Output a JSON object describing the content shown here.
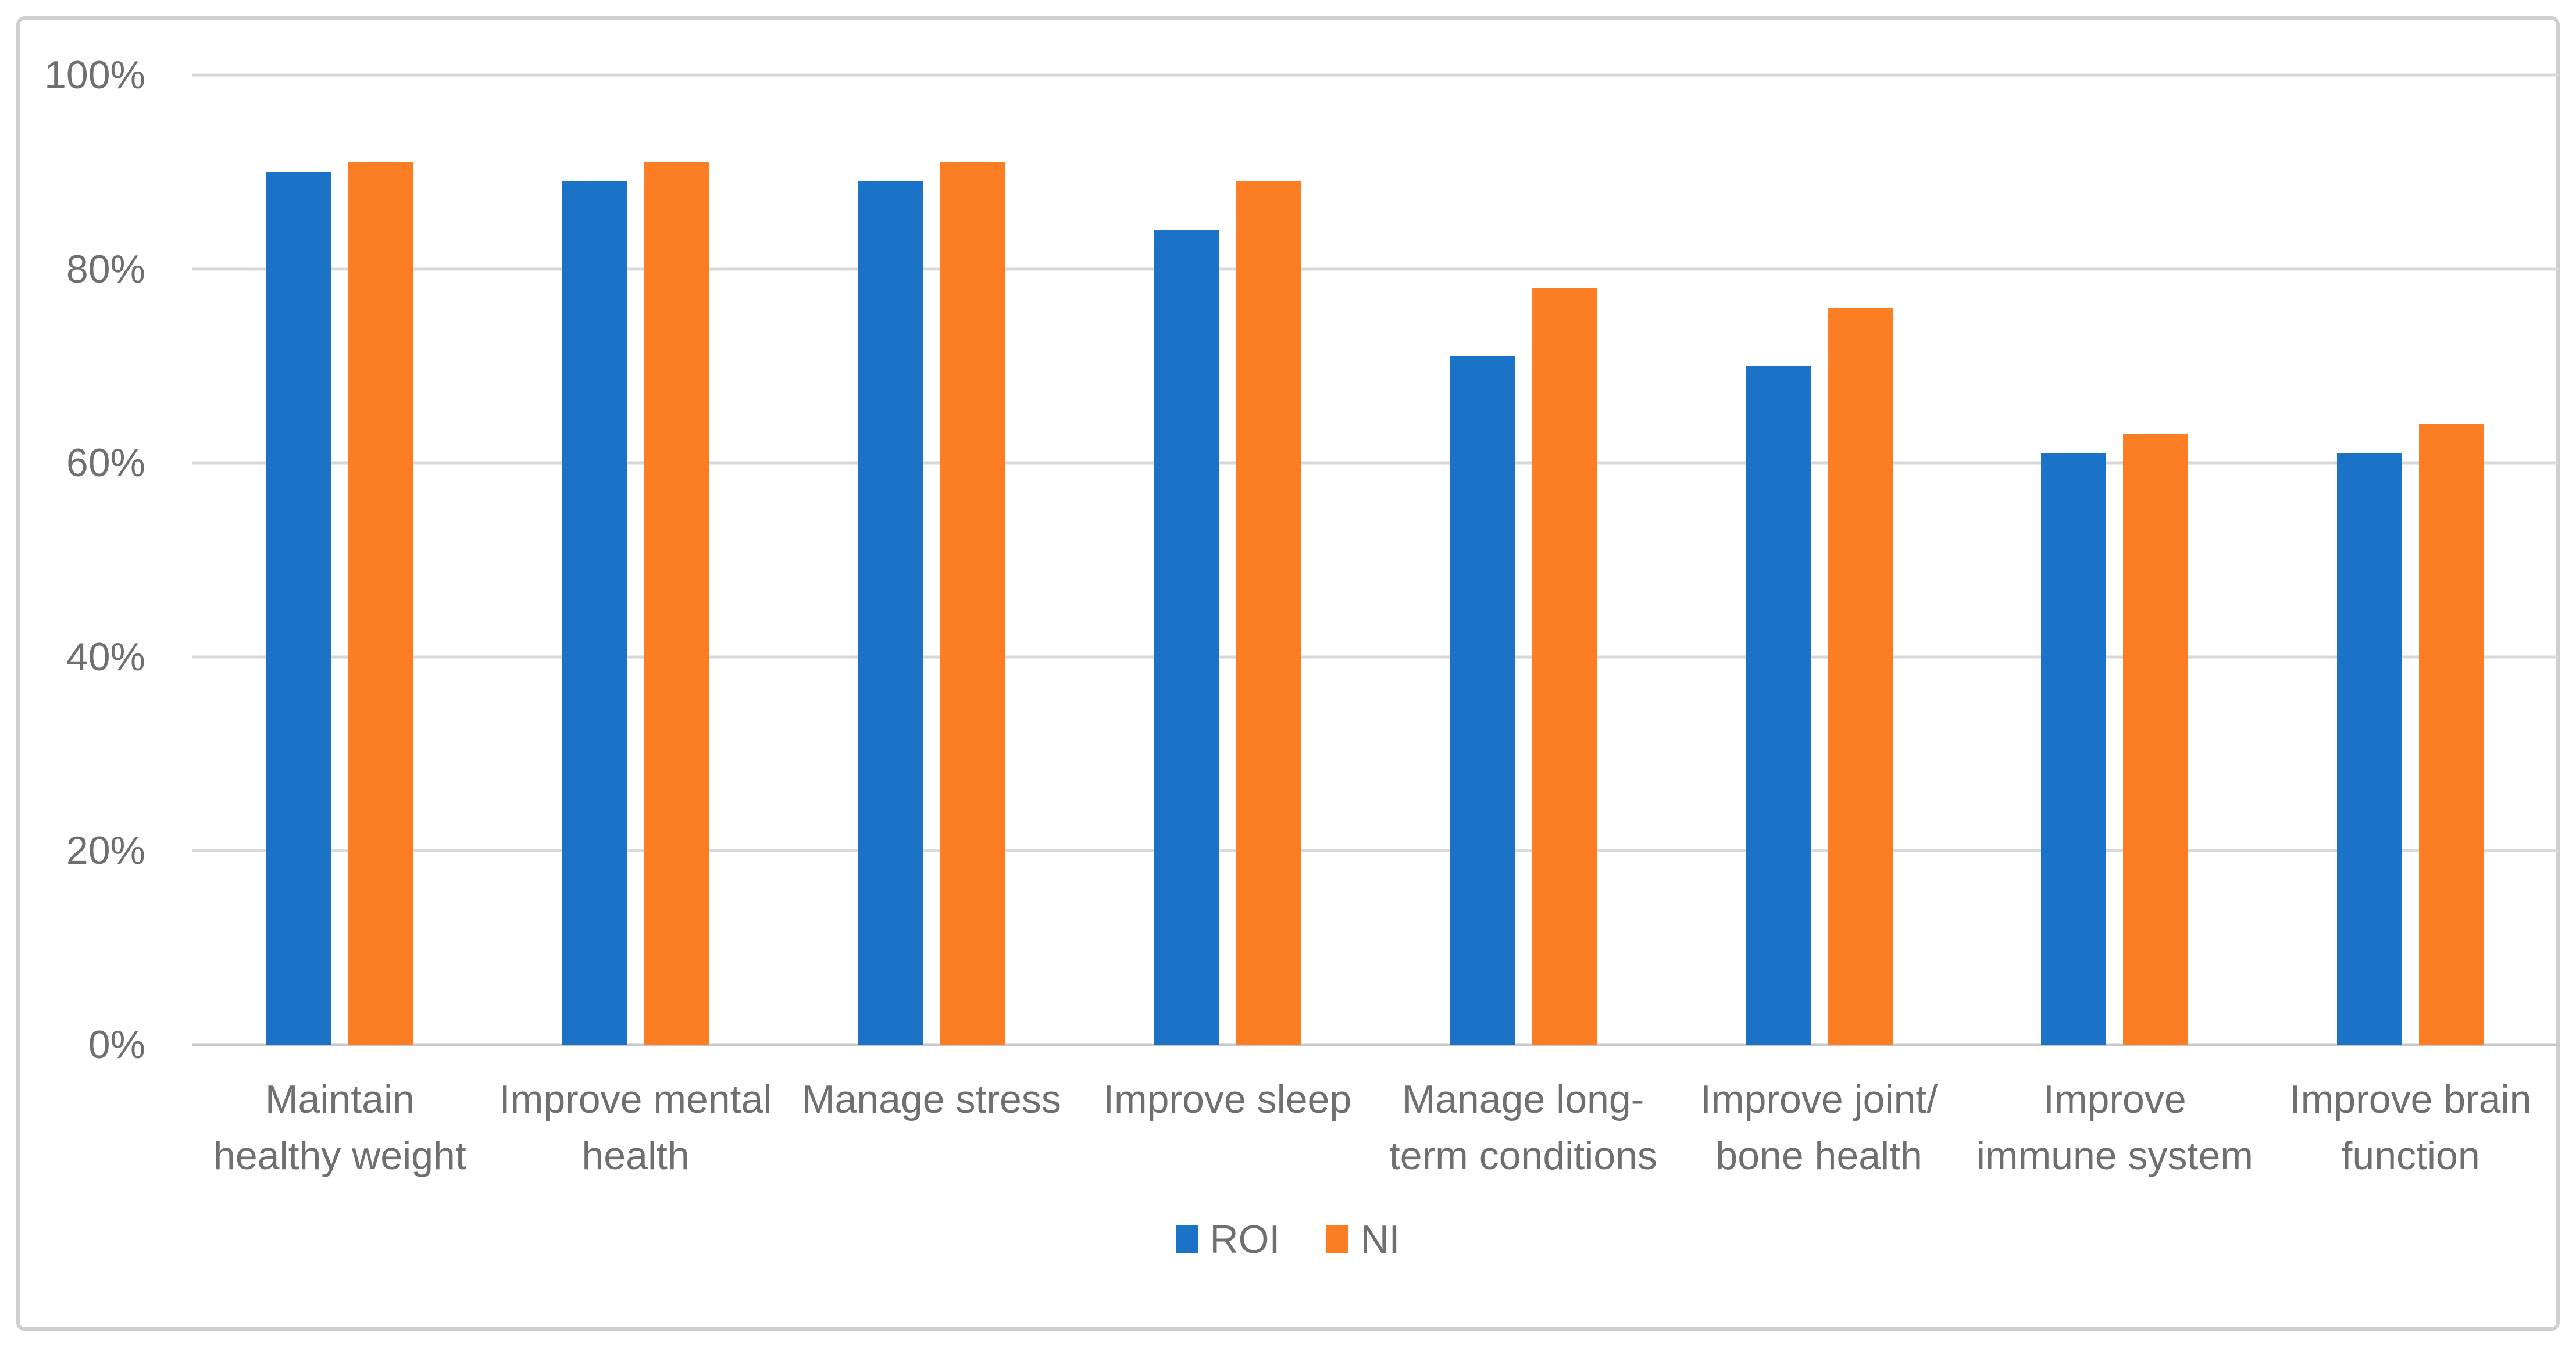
{
  "figure": {
    "background_color": "#FFFFFF",
    "frame_border_color": "#CFCFCF",
    "gridline_color": "#D9D9D9",
    "baseline_color": "#C8C8C8",
    "label_text_color": "#6F6F6F"
  },
  "chart_data": {
    "type": "bar",
    "title": "",
    "xlabel": "",
    "ylabel": "",
    "categories": [
      "Maintain\nhealthy weight",
      "Improve mental\nhealth",
      "Manage stress",
      "Improve sleep",
      "Manage long-\nterm conditions",
      "Improve joint/\nbone health",
      "Improve\nimmune system",
      "Improve brain\nfunction"
    ],
    "series": [
      {
        "name": "ROI",
        "color": "#1B73C8",
        "values": [
          90,
          89,
          89,
          84,
          71,
          70,
          61,
          61
        ]
      },
      {
        "name": "NI",
        "color": "#FB7D24",
        "values": [
          91,
          91,
          91,
          89,
          78,
          76,
          63,
          64
        ]
      }
    ],
    "ylim": [
      0,
      100
    ],
    "ytick_step": 20,
    "ytick_labels": [
      "0%",
      "20%",
      "40%",
      "60%",
      "80%",
      "100%"
    ],
    "grid": true,
    "legend_position": "bottom-center"
  }
}
